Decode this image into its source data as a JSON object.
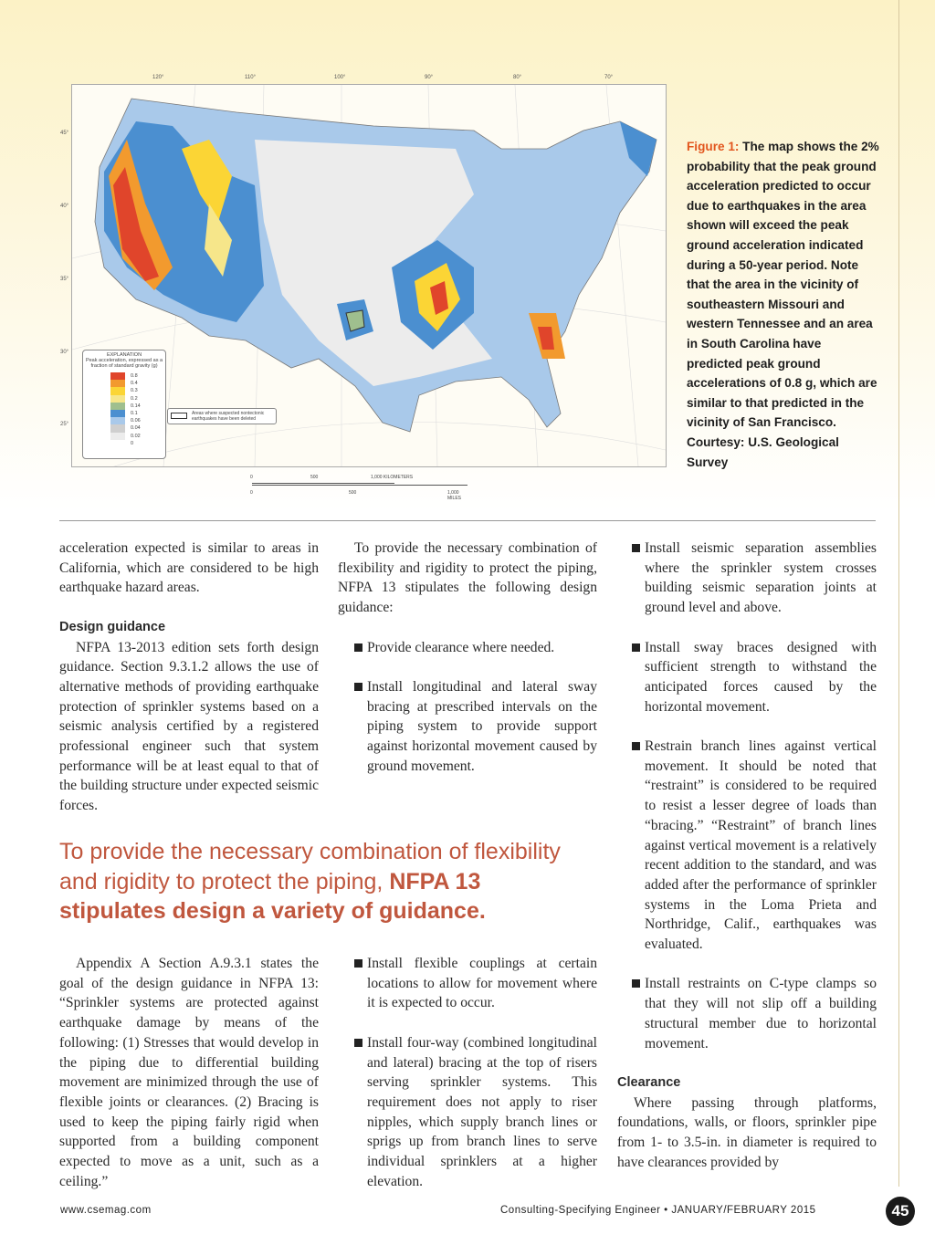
{
  "figure": {
    "longitudes": [
      "120°",
      "110°",
      "100°",
      "90°",
      "80°",
      "70°"
    ],
    "latitudes": [
      "45°",
      "40°",
      "35°",
      "30°",
      "25°"
    ],
    "legend_title": "EXPLANATION",
    "legend_subtitle": "Peak acceleration, expressed as a fraction of standard gravity (g)",
    "legend_values": [
      "0.8",
      "0.4",
      "0.3",
      "0.2",
      "0.14",
      "0.1",
      "0.06",
      "0.04",
      "0.02",
      "0"
    ],
    "legend_colors": [
      "#e0452b",
      "#f29a2e",
      "#fbd535",
      "#f6e68a",
      "#9fbf8e",
      "#4b8fd0",
      "#a9c9ea",
      "#cfcfcf",
      "#ececec",
      "#ffffff"
    ],
    "nontectonic_note": "Areas where suspected nontectonic earthquakes have been deleted",
    "scale_km": [
      "0",
      "500",
      "1,000 KILOMETERS"
    ],
    "scale_mi": [
      "0",
      "500",
      "1,000 MILES"
    ],
    "caption_label": "Figure 1:",
    "caption_text": " The map shows the 2% probability that the peak ground acceleration predicted to occur due to earthquakes in the area shown will exceed the peak ground acceleration indicated during a 50-year period. Note that the area in the vicinity of southeastern Missouri and western Tennessee and an area in South Carolina have predicted peak ground accelerations of 0.8 g, which are similar to that predicted in the vicinity of San Francisco. Courtesy: U.S. Geological Survey"
  },
  "col1": {
    "p1": "acceleration expected is similar to areas in California, which are considered to be high earthquake hazard areas.",
    "heading": "Design guidance",
    "p2": "NFPA 13-2013 edition sets forth design guidance. Section 9.3.1.2 allows the use of alternative methods of providing earthquake protection of sprinkler systems based on a seismic analysis certified by a registered professional engineer such that system performance will be at least equal to that of the building structure under expected seismic forces.",
    "p3": "Appendix A Section A.9.3.1 states the goal of the design guidance in NFPA 13: “Sprinkler systems are protected against earthquake damage by means of the following: (1) Stresses that would develop in the piping due to differential building movement are minimized through the use of flexible joints or clearances. (2) Bracing is used to keep the piping fairly rigid when supported from a building component expected to move as a unit, such as a ceiling.”"
  },
  "col2": {
    "p1": "To provide the necessary combination of flexibility and rigidity to protect the piping, NFPA 13 stipulates the following design guidance:",
    "b1": "Provide clearance where needed.",
    "b2": "Install longitudinal and lateral sway bracing at prescribed intervals on the piping system to provide support against horizontal movement caused by ground movement.",
    "b3": "Install flexible couplings at certain locations to allow for movement where it is expected to occur.",
    "b4": "Install four-way (combined longitudinal and lateral) bracing at the top of risers serving sprinkler systems. This requirement does not apply to riser nipples, which supply branch lines or sprigs up from branch lines to serve individual sprinklers at a higher elevation."
  },
  "col3": {
    "b1": "Install seismic separation assemblies where the sprinkler system crosses building seismic separation joints at ground level and above.",
    "b2": "Install sway braces designed with sufficient strength to withstand the anticipated forces caused by the horizontal movement.",
    "b3": "Restrain branch lines against vertical movement. It should be noted that “restraint” is considered to be required to resist a lesser degree of loads than “bracing.” “Restraint” of branch lines against vertical movement is a relatively recent addition to the standard, and was added after the performance of sprinkler systems in the Loma Prieta and Northridge, Calif., earthquakes was evaluated.",
    "b4": "Install restraints on C-type clamps so that they will not slip off a building structural member due to horizontal movement.",
    "heading": "Clearance",
    "p1": "Where passing through platforms, foundations, walls, or floors, sprinkler pipe from 1- to 3.5-in. in diameter is required to have clearances provided by"
  },
  "pullquote": {
    "light": "To provide the necessary combination of flexibility and rigidity to protect the piping, ",
    "bold": "NFPA 13 stipulates design a variety of guidance."
  },
  "footer": {
    "url": "www.csemag.com",
    "publication": "Consulting-Specifying Engineer • JANUARY/FEBRUARY 2015",
    "page": "45"
  },
  "colors": {
    "accent": "#e2561e",
    "pullquote": "#c0573e"
  }
}
